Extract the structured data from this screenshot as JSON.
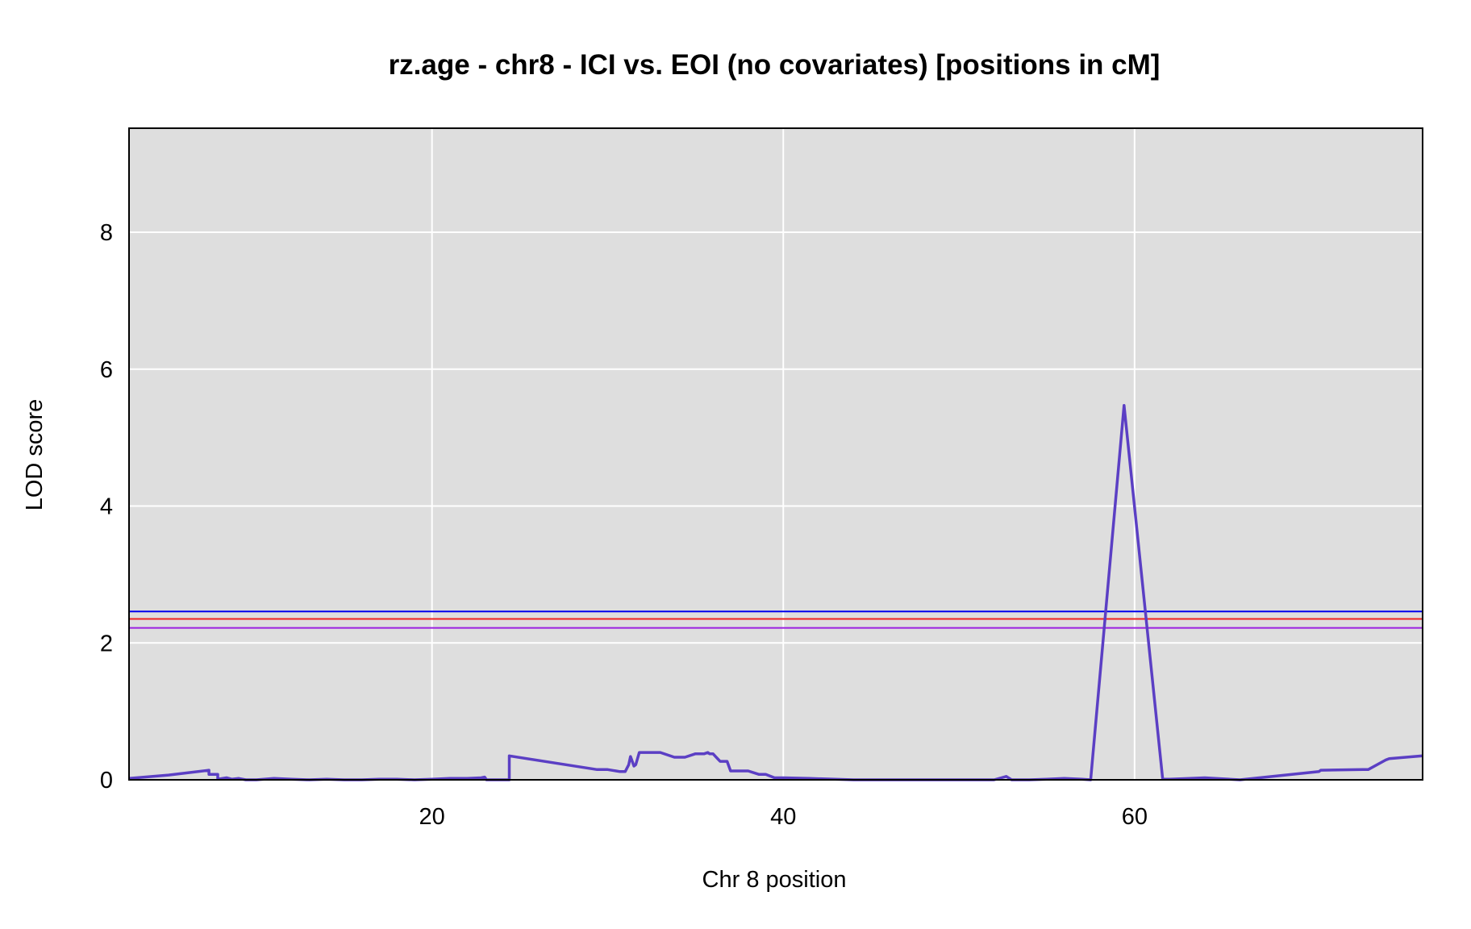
{
  "chart_data": {
    "type": "line",
    "title": "rz.age - chr8 - ICI vs. EOI (no covariates) [positions in cM]",
    "xlabel": "Chr 8 position",
    "ylabel": "LOD score",
    "xlim": [
      2.75,
      76.4
    ],
    "ylim": [
      0,
      9.52
    ],
    "xticks": [
      20,
      40,
      60
    ],
    "yticks": [
      0,
      2,
      4,
      6,
      8
    ],
    "grid": true,
    "legend": "none",
    "colors": {
      "panel_bg": "#dedede",
      "grid": "#ffffff",
      "series": "#5b3fc4",
      "threshold_blue": "#0000ee",
      "threshold_red": "#ee2222",
      "threshold_purple": "#9a20e0"
    },
    "thresholds": [
      {
        "value": 2.46,
        "color": "#0000ee"
      },
      {
        "value": 2.35,
        "color": "#ee2222"
      },
      {
        "value": 2.22,
        "color": "#9a20e0"
      }
    ],
    "series": [
      {
        "x": [
          2.75,
          5.0,
          7.3,
          7.3,
          7.8,
          7.8,
          8.3,
          8.6,
          9.0,
          9.4,
          10.0,
          11.0,
          12.0,
          13.0,
          14.0,
          15.0,
          16.0,
          17.0,
          18.0,
          19.0,
          20.0,
          21.0,
          22.0,
          22.8,
          23.0,
          23.1,
          24.4,
          24.4,
          29.4,
          30.0,
          30.7,
          31.0,
          31.2,
          31.3,
          31.5,
          31.6,
          31.8,
          32.0,
          33.0,
          33.8,
          34.0,
          34.4,
          35.0,
          35.3,
          35.5,
          35.7,
          35.8,
          36.0,
          36.4,
          36.8,
          37.0,
          38.0,
          38.6,
          39.0,
          39.5,
          40.0,
          41.5,
          44.0,
          48.0,
          52.0,
          52.7,
          53.0,
          54.0,
          55.0,
          56.0,
          57.0,
          57.5,
          59.4,
          61.6,
          62.0,
          64.0,
          66.0,
          70.5,
          70.6,
          73.0,
          73.3,
          74.3,
          74.5,
          76.4
        ],
        "y": [
          0.02,
          0.07,
          0.14,
          0.08,
          0.08,
          0.01,
          0.03,
          0.01,
          0.02,
          0.0,
          0.0,
          0.02,
          0.01,
          0.0,
          0.01,
          0.0,
          0.0,
          0.01,
          0.01,
          0.0,
          0.01,
          0.02,
          0.02,
          0.03,
          0.04,
          0.0,
          0.0,
          0.35,
          0.15,
          0.15,
          0.12,
          0.12,
          0.22,
          0.34,
          0.2,
          0.22,
          0.4,
          0.4,
          0.4,
          0.33,
          0.33,
          0.33,
          0.38,
          0.38,
          0.38,
          0.4,
          0.38,
          0.38,
          0.27,
          0.27,
          0.13,
          0.13,
          0.08,
          0.08,
          0.03,
          0.03,
          0.02,
          0.0,
          0.0,
          0.0,
          0.05,
          0.0,
          0.0,
          0.01,
          0.02,
          0.01,
          0.0,
          5.47,
          0.01,
          0.01,
          0.03,
          0.0,
          0.12,
          0.14,
          0.15,
          0.15,
          0.29,
          0.31,
          0.35
        ]
      }
    ]
  }
}
